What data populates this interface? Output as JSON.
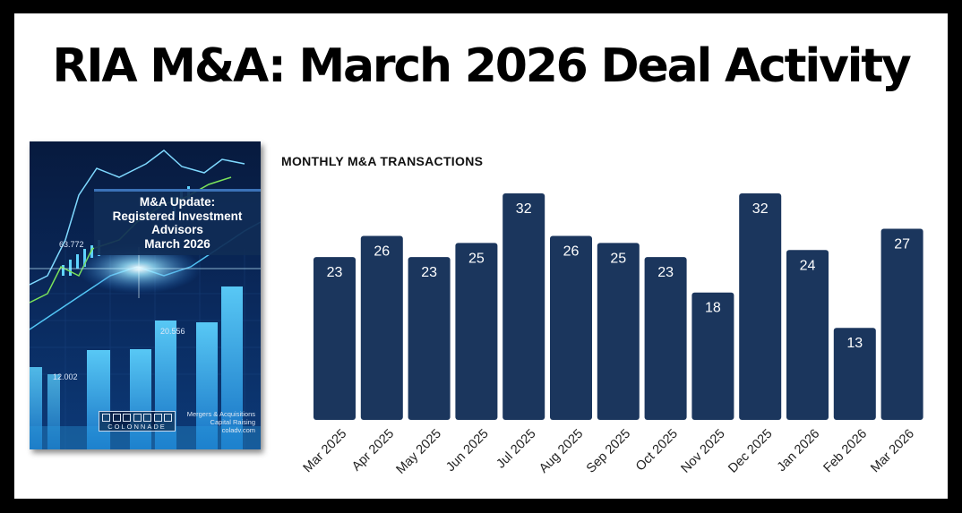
{
  "header": {
    "title": "RIA M&A: March 2026 Deal Activity"
  },
  "cover": {
    "title_lines": [
      "M&A Update:",
      "Registered Investment",
      "Advisors",
      "March 2026"
    ],
    "logo_text": "COLONNADE",
    "contact_lines": [
      "Mergers & Acquisitions",
      "Capital Raising",
      "coladv.com"
    ],
    "chart_numbers": [
      "63.772",
      "12.002",
      "20.556"
    ],
    "colors": {
      "background": "#0a2a5e",
      "accent": "#3fb8f0",
      "line_green": "#7be35a"
    }
  },
  "chart_data": {
    "type": "bar",
    "title": "MONTHLY M&A TRANSACTIONS",
    "xlabel": "",
    "ylabel": "",
    "categories": [
      "Mar 2025",
      "Apr 2025",
      "May 2025",
      "Jun 2025",
      "Jul 2025",
      "Aug 2025",
      "Sep 2025",
      "Oct 2025",
      "Nov 2025",
      "Dec 2025",
      "Jan 2026",
      "Feb 2026",
      "Mar 2026"
    ],
    "values": [
      23,
      26,
      23,
      25,
      32,
      26,
      25,
      23,
      18,
      32,
      24,
      13,
      27
    ],
    "ylim": [
      0,
      32
    ],
    "grid": false,
    "data_labels": true,
    "bar_color": "#1b365d",
    "label_color": "#ffffff"
  }
}
